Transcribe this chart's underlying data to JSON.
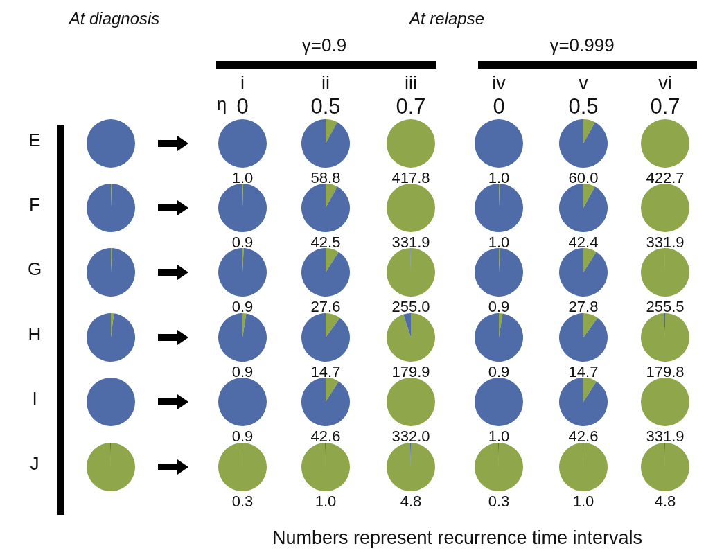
{
  "chart_data": [
    {
      "type": "other",
      "annotations": [
        "At diagnosis",
        "At relapse",
        "γ=0.9",
        "γ=0.999",
        "i",
        "ii",
        "iii",
        "iv",
        "v",
        "vi",
        "η",
        "0",
        "0.5",
        "0.7",
        "0",
        "0.5",
        "0.7",
        "Numbers represent recurrence time intervals"
      ]
    },
    {
      "type": "pie",
      "title": "E",
      "categories": [
        null,
        null
      ],
      "colors": [
        "#8fa64a",
        "#4f6ca8"
      ],
      "annotations": [
        "1.0",
        "58.8",
        "417.8",
        "1.0",
        "60.0",
        "422.7"
      ],
      "series": [
        {
          "values": [
            0,
            100
          ]
        },
        {
          "values": [
            0,
            100
          ]
        },
        {
          "values": [
            8,
            92
          ]
        },
        {
          "values": [
            100,
            0
          ]
        },
        {
          "values": [
            0,
            100
          ]
        },
        {
          "values": [
            8,
            92
          ]
        },
        {
          "values": [
            100,
            0
          ]
        }
      ]
    },
    {
      "type": "pie",
      "title": "F",
      "categories": [
        null,
        null
      ],
      "colors": [
        "#8fa64a",
        "#4f6ca8"
      ],
      "annotations": [
        "0.9",
        "42.5",
        "331.9",
        "1.0",
        "42.4",
        "331.9"
      ],
      "series": [
        {
          "values": [
            0.5,
            99.5
          ]
        },
        {
          "values": [
            0.5,
            99.5
          ]
        },
        {
          "values": [
            8,
            92
          ]
        },
        {
          "values": [
            100,
            0
          ]
        },
        {
          "values": [
            0.5,
            99.5
          ]
        },
        {
          "values": [
            8,
            92
          ]
        },
        {
          "values": [
            100,
            0
          ]
        }
      ]
    },
    {
      "type": "pie",
      "title": "G",
      "categories": [
        null,
        null
      ],
      "colors": [
        "#8fa64a",
        "#4f6ca8"
      ],
      "annotations": [
        "0.9",
        "27.6",
        "255.0",
        "0.9",
        "27.8",
        "255.5"
      ],
      "series": [
        {
          "values": [
            0.8,
            99.2
          ]
        },
        {
          "values": [
            0.8,
            99.2
          ]
        },
        {
          "values": [
            9,
            91
          ]
        },
        {
          "values": [
            99.7,
            0.3
          ]
        },
        {
          "values": [
            0.8,
            99.2
          ]
        },
        {
          "values": [
            9,
            91
          ]
        },
        {
          "values": [
            99.7,
            0.3
          ]
        }
      ]
    },
    {
      "type": "pie",
      "title": "H",
      "categories": [
        null,
        null
      ],
      "colors": [
        "#8fa64a",
        "#4f6ca8"
      ],
      "annotations": [
        "0.9",
        "14.7",
        "179.9",
        "0.9",
        "14.7",
        "179.8"
      ],
      "series": [
        {
          "values": [
            2,
            98
          ]
        },
        {
          "values": [
            2.5,
            97.5
          ]
        },
        {
          "values": [
            10,
            90
          ]
        },
        {
          "values": [
            95,
            5
          ]
        },
        {
          "values": [
            2.5,
            97.5
          ]
        },
        {
          "values": [
            10,
            90
          ]
        },
        {
          "values": [
            99,
            1
          ]
        }
      ]
    },
    {
      "type": "pie",
      "title": "I",
      "categories": [
        null,
        null
      ],
      "colors": [
        "#8fa64a",
        "#4f6ca8"
      ],
      "annotations": [
        "0.9",
        "42.6",
        "332.0",
        "1.0",
        "42.6",
        "331.9"
      ],
      "series": [
        {
          "values": [
            0,
            100
          ]
        },
        {
          "values": [
            0,
            100
          ]
        },
        {
          "values": [
            9,
            91
          ]
        },
        {
          "values": [
            100,
            0
          ]
        },
        {
          "values": [
            0,
            100
          ]
        },
        {
          "values": [
            9,
            91
          ]
        },
        {
          "values": [
            100,
            0
          ]
        }
      ]
    },
    {
      "type": "pie",
      "title": "J",
      "categories": [
        null,
        null
      ],
      "colors": [
        "#8fa64a",
        "#4f6ca8"
      ],
      "annotations": [
        "0.3",
        "1.0",
        "4.8",
        "0.3",
        "1.0",
        "4.8"
      ],
      "series": [
        {
          "values": [
            99.5,
            0.5
          ]
        },
        {
          "values": [
            99.5,
            0.5
          ]
        },
        {
          "values": [
            99.5,
            0.5
          ]
        },
        {
          "values": [
            99.5,
            0.5
          ]
        },
        {
          "values": [
            99.5,
            0.5
          ]
        },
        {
          "values": [
            99.5,
            0.5
          ]
        },
        {
          "values": [
            99.5,
            0.5
          ]
        }
      ]
    }
  ]
}
